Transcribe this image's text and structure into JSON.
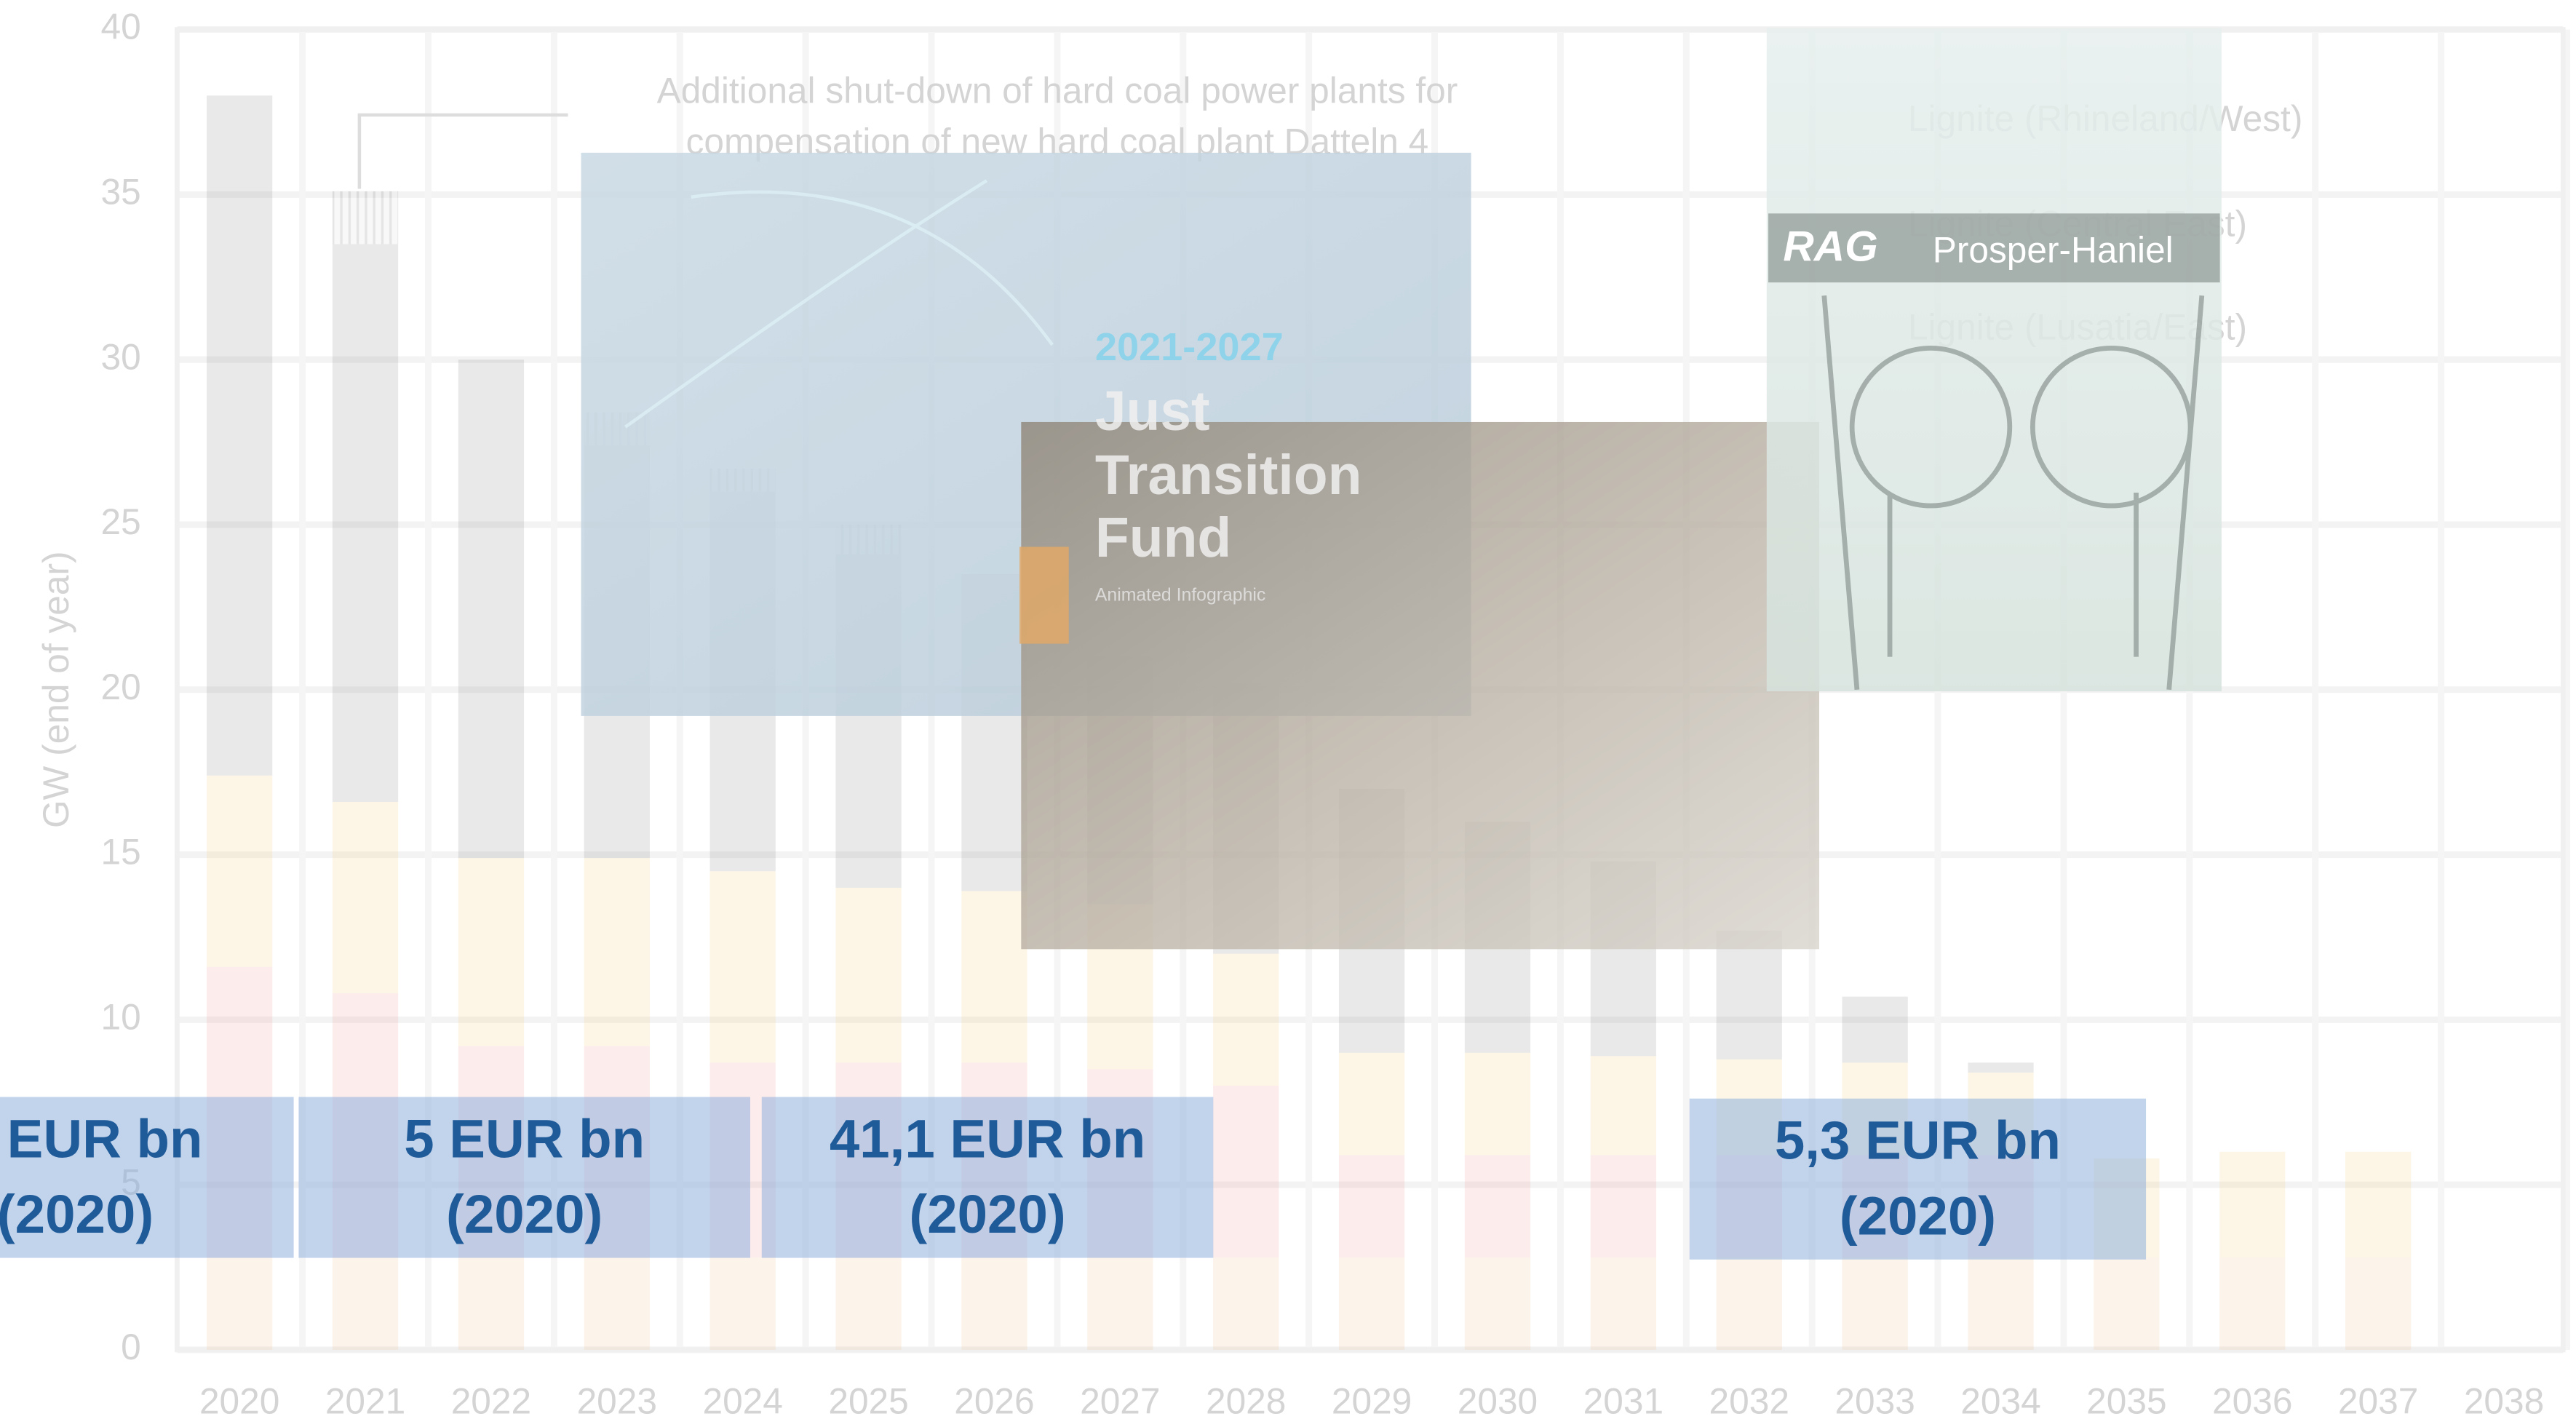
{
  "background_chart": {
    "type": "bar",
    "stacked": true,
    "ylabel": "GW (end of year)",
    "annotation": [
      "Additional shut-down of hard coal power plants for",
      "compensation of new hard coal plant Datteln 4"
    ],
    "categories": [
      "2020",
      "2021",
      "2022",
      "2023",
      "2024",
      "2025",
      "2026",
      "2027",
      "2028",
      "2029",
      "2030",
      "2031",
      "2032",
      "2033",
      "2034",
      "2035",
      "2036",
      "2037",
      "2038"
    ],
    "series": [
      {
        "name": "Lignite (Lusatia/East)",
        "color": "#f3c9a0",
        "values": [
          2.8,
          2.8,
          2.8,
          2.8,
          2.8,
          2.8,
          2.8,
          2.8,
          2.8,
          2.8,
          2.8,
          2.8,
          2.8,
          2.8,
          2.8,
          2.8,
          2.8,
          2.8,
          0
        ]
      },
      {
        "name": "Lignite (Central East)",
        "color": "#f0a9a9",
        "values": [
          8.8,
          8.0,
          6.4,
          6.4,
          5.9,
          5.9,
          5.9,
          5.7,
          5.2,
          3.1,
          3.1,
          3.1,
          3.1,
          3.1,
          3.1,
          0,
          0,
          0,
          0
        ]
      },
      {
        "name": "Lignite (Rhineland/West)",
        "color": "#f5d493",
        "values": [
          5.8,
          5.8,
          5.7,
          5.7,
          5.8,
          5.3,
          5.2,
          5.0,
          4.0,
          3.1,
          3.1,
          3.0,
          2.9,
          2.8,
          2.5,
          3.0,
          3.2,
          3.2,
          0
        ]
      },
      {
        "color": "#9a9a9a",
        "values": [
          20.6,
          16.9,
          15.1,
          12.5,
          11.5,
          10.1,
          9.6,
          7.5,
          8.2,
          8.0,
          7.0,
          5.9,
          3.9,
          2.0,
          0.3,
          0,
          0,
          0,
          0
        ]
      },
      {
        "color": "#c8c8c8",
        "hatched": true,
        "values": [
          0,
          1.6,
          0,
          1.0,
          0.7,
          0.9,
          0,
          0,
          0,
          0,
          0,
          0,
          0,
          0,
          0,
          0,
          0,
          0,
          0
        ]
      }
    ],
    "ylim": [
      0,
      40
    ],
    "yticks": [
      0,
      5,
      10,
      15,
      20,
      25,
      30,
      35,
      40
    ],
    "grid": true
  },
  "overlays": {
    "jtf": {
      "years": "2021-2027",
      "title": [
        "Just",
        "Transition",
        "Fund"
      ],
      "subtitle": "Animated Infographic"
    },
    "rag": {
      "logo": "RAG",
      "text": "Prosper-Haniel"
    }
  },
  "boxes": [
    {
      "lines": [
        "EUR bn",
        "(2020)"
      ]
    },
    {
      "lines": [
        "5 EUR bn",
        "(2020)"
      ]
    },
    {
      "lines": [
        "41,1 EUR bn",
        "(2020)"
      ]
    },
    {
      "lines": [
        "5,3 EUR bn",
        "(2020)"
      ]
    }
  ]
}
